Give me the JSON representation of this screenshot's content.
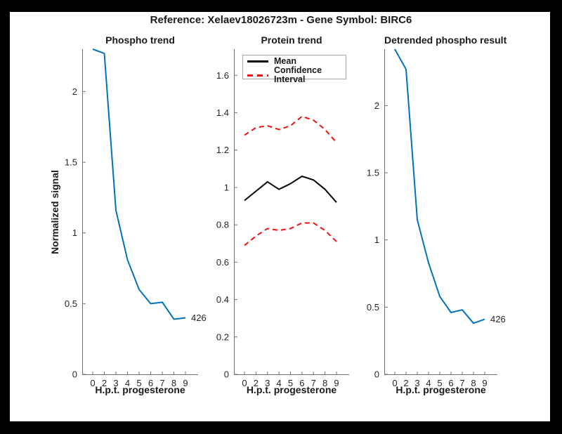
{
  "figure_title": "Reference:  Xelaev18026723m - Gene Symbol:  BIRC6",
  "colors": {
    "line_blue": "#0072BD",
    "line_red": "#EE1111",
    "line_black": "#000000",
    "axis": "#737373",
    "text": "#262626",
    "frame_border": "#000000",
    "background": "#FFFFFF"
  },
  "chart_data": [
    {
      "type": "line",
      "title": "Phospho trend",
      "xlabel": "H.p.t. progesterone",
      "ylabel": "Normalized signal",
      "x": [
        0,
        2,
        3,
        4,
        5,
        6,
        7,
        8,
        9
      ],
      "series": [
        {
          "name": "phospho-signal",
          "color": "#0072BD",
          "dash": "solid",
          "values": [
            2.3,
            2.27,
            1.16,
            0.81,
            0.6,
            0.5,
            0.51,
            0.39,
            0.4
          ]
        }
      ],
      "endpoint_label": "426",
      "ylim": [
        0,
        2.3
      ],
      "yticks": [
        0,
        0.5,
        1,
        1.5,
        2
      ],
      "ytick_labels": [
        "0",
        "0.5",
        "1",
        "1.5",
        "2"
      ],
      "grid": false
    },
    {
      "type": "line",
      "title": "Protein trend",
      "xlabel": "H.p.t. progesterone",
      "ylabel": "",
      "x": [
        0,
        2,
        3,
        4,
        5,
        6,
        7,
        8,
        9
      ],
      "series": [
        {
          "name": "mean",
          "color": "#000000",
          "dash": "solid",
          "values": [
            0.93,
            0.98,
            1.03,
            0.99,
            1.02,
            1.06,
            1.04,
            0.99,
            0.92
          ]
        },
        {
          "name": "confidence-interval-upper",
          "color": "#EE1111",
          "dash": "dashed",
          "values": [
            1.28,
            1.32,
            1.33,
            1.31,
            1.33,
            1.38,
            1.36,
            1.31,
            1.24
          ]
        },
        {
          "name": "confidence-interval-lower",
          "color": "#EE1111",
          "dash": "dashed",
          "values": [
            0.69,
            0.74,
            0.78,
            0.77,
            0.78,
            0.81,
            0.81,
            0.77,
            0.71
          ]
        }
      ],
      "legend": {
        "position": "top-left",
        "entries": [
          {
            "label": "Mean",
            "color": "#000000",
            "dash": "solid"
          },
          {
            "label": "Confidence Interval",
            "color": "#EE1111",
            "dash": "dashed"
          }
        ]
      },
      "ylim": [
        0,
        1.74
      ],
      "yticks": [
        0,
        0.2,
        0.4,
        0.6,
        0.8,
        1,
        1.2,
        1.4,
        1.6
      ],
      "ytick_labels": [
        "0",
        "0.2",
        "0.4",
        "0.6",
        "0.8",
        "1",
        "1.2",
        "1.4",
        "1.6"
      ],
      "grid": false
    },
    {
      "type": "line",
      "title": "Detrended phospho result",
      "xlabel": "H.p.t. progesterone",
      "ylabel": "",
      "x": [
        0,
        2,
        3,
        4,
        5,
        6,
        7,
        8,
        9
      ],
      "series": [
        {
          "name": "detrended-phospho-signal",
          "color": "#0072BD",
          "dash": "solid",
          "values": [
            2.42,
            2.27,
            1.15,
            0.83,
            0.58,
            0.46,
            0.48,
            0.38,
            0.41
          ]
        }
      ],
      "endpoint_label": "426",
      "ylim": [
        0,
        2.42
      ],
      "yticks": [
        0,
        0.5,
        1,
        1.5,
        2
      ],
      "ytick_labels": [
        "0",
        "0.5",
        "1",
        "1.5",
        "2"
      ],
      "grid": false
    }
  ]
}
